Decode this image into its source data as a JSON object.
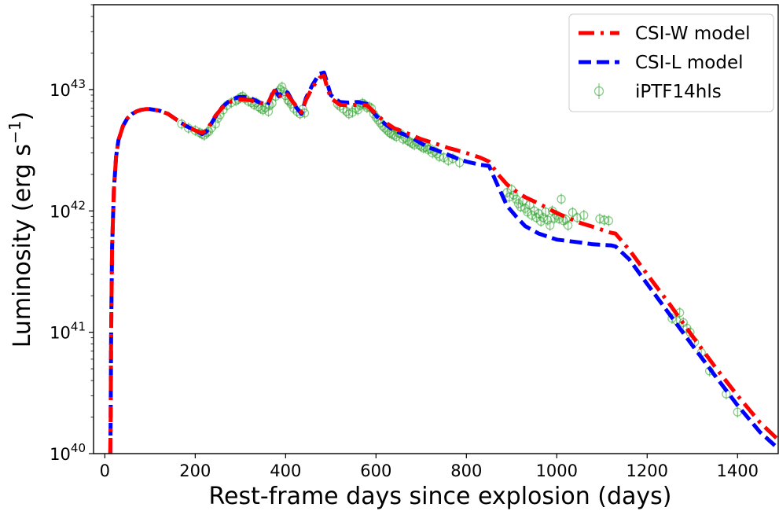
{
  "chart_data": {
    "type": "line",
    "title": "",
    "xlabel": "Rest-frame days since explosion (days)",
    "ylabel": {
      "prefix": "Luminosity (erg s",
      "exponent": "−1",
      "suffix": ")"
    },
    "xlim": [
      -25,
      1490
    ],
    "ylim": [
      1e+40,
      5e+43
    ],
    "yscale": "log",
    "grid": false,
    "legend_position": "top-right",
    "x_ticks": [
      "0",
      "200",
      "400",
      "600",
      "800",
      "1000",
      "1200",
      "1400"
    ],
    "y_ticks": [
      {
        "base": "10",
        "exp": "40"
      },
      {
        "base": "10",
        "exp": "41"
      },
      {
        "base": "10",
        "exp": "42"
      },
      {
        "base": "10",
        "exp": "43"
      }
    ],
    "series": [
      {
        "name": "CSI-W model",
        "type": "line",
        "color": "#ff0000",
        "dash": "dashdot",
        "x": [
          12,
          13,
          14,
          16,
          20,
          25,
          30,
          40,
          50,
          60,
          70,
          80,
          90,
          100,
          120,
          140,
          160,
          180,
          200,
          215,
          225,
          235,
          245,
          260,
          280,
          300,
          320,
          340,
          360,
          375,
          385,
          395,
          405,
          415,
          425,
          435,
          445,
          460,
          475,
          485,
          490,
          500,
          520,
          540,
          560,
          580,
          600,
          620,
          640,
          660,
          680,
          700,
          720,
          740,
          760,
          780,
          800,
          830,
          850,
          870,
          890,
          910,
          930,
          960,
          1000,
          1050,
          1080,
          1120,
          1130,
          1160,
          1200,
          1250,
          1300,
          1350,
          1400,
          1450,
          1490
        ],
        "y": [
          1e+40,
          2e+40,
          1e+41,
          5e+41,
          1.5e+42,
          2.8e+42,
          3.8e+42,
          5e+42,
          5.8e+42,
          6.3e+42,
          6.6e+42,
          6.8e+42,
          6.9e+42,
          6.9e+42,
          6.7e+42,
          6.3e+42,
          5.6e+42,
          5e+42,
          4.6e+42,
          4.4e+42,
          4.6e+42,
          5.3e+42,
          6.1e+42,
          7.1e+42,
          8e+42,
          8.3e+42,
          8.2e+42,
          7.8e+42,
          7.6e+42,
          9.8e+42,
          8.6e+42,
          9.5e+42,
          9e+42,
          8e+42,
          7.2e+42,
          6.5e+42,
          8.2e+42,
          1.05e+43,
          1.25e+43,
          1.3e+43,
          1.1e+43,
          8.5e+42,
          7.5e+42,
          7.4e+42,
          7.5e+42,
          7.4e+42,
          6.3e+42,
          5.4e+42,
          4.8e+42,
          4.5e+42,
          4.2e+42,
          3.9e+42,
          3.7e+42,
          3.5e+42,
          3.3e+42,
          3.15e+42,
          3e+42,
          2.75e+42,
          2.55e+42,
          2e+42,
          1.65e+42,
          1.45e+42,
          1.3e+42,
          1.15e+42,
          9.6e+41,
          8e+41,
          7.4e+41,
          6.6e+41,
          6.5e+41,
          4.8e+41,
          3e+41,
          1.7e+41,
          9.3e+40,
          5.2e+40,
          3e+40,
          1.8e+40,
          1.3e+40
        ]
      },
      {
        "name": "CSI-L model",
        "type": "line",
        "color": "#0000ff",
        "dash": "dashed",
        "x": [
          12,
          13,
          14,
          16,
          20,
          25,
          30,
          40,
          50,
          60,
          70,
          80,
          90,
          100,
          120,
          140,
          160,
          180,
          200,
          215,
          225,
          235,
          245,
          260,
          280,
          300,
          320,
          340,
          360,
          375,
          385,
          395,
          405,
          415,
          425,
          435,
          445,
          460,
          475,
          485,
          490,
          500,
          520,
          540,
          560,
          580,
          600,
          620,
          640,
          660,
          680,
          700,
          720,
          740,
          760,
          780,
          800,
          830,
          850,
          870,
          890,
          910,
          930,
          960,
          1000,
          1050,
          1080,
          1120,
          1130,
          1160,
          1200,
          1250,
          1300,
          1350,
          1400,
          1450,
          1490
        ],
        "y": [
          1e+40,
          2e+40,
          1e+41,
          5e+41,
          1.5e+42,
          2.8e+42,
          3.8e+42,
          5e+42,
          5.8e+42,
          6.3e+42,
          6.6e+42,
          6.8e+42,
          6.9e+42,
          6.9e+42,
          6.7e+42,
          6.3e+42,
          5.6e+42,
          5e+42,
          4.6e+42,
          4.3e+42,
          4.5e+42,
          5.2e+42,
          6e+42,
          7.2e+42,
          8.3e+42,
          8.7e+42,
          8.6e+42,
          7.9e+42,
          7.4e+42,
          1.02e+43,
          8.8e+42,
          9.8e+42,
          9.4e+42,
          8e+42,
          7e+42,
          6.3e+42,
          8.5e+42,
          1.1e+43,
          1.35e+43,
          1.38e+43,
          1.2e+43,
          9e+42,
          7.9e+42,
          7.8e+42,
          7.9e+42,
          7.6e+42,
          6.1e+42,
          5.2e+42,
          4.6e+42,
          4.3e+42,
          4e+42,
          3.6e+42,
          3.3e+42,
          3.1e+42,
          2.9e+42,
          2.7e+42,
          2.55e+42,
          2.4e+42,
          2.35e+42,
          1.6e+42,
          1.1e+42,
          9e+41,
          7.5e+41,
          6.5e+41,
          5.8e+41,
          5.5e+41,
          5.3e+41,
          5.2e+41,
          5.1e+41,
          4e+41,
          2.5e+41,
          1.4e+41,
          7.8e+40,
          4.4e+40,
          2.5e+40,
          1.5e+40,
          1.1e+40
        ]
      },
      {
        "name": "iPTF14hls",
        "type": "scatter",
        "color": "#2ca02c",
        "marker": "open-circle-errorbar",
        "x": [
          170,
          185,
          200,
          210,
          215,
          220,
          225,
          230,
          235,
          245,
          250,
          255,
          262,
          270,
          280,
          290,
          295,
          300,
          305,
          310,
          318,
          325,
          330,
          335,
          340,
          345,
          350,
          355,
          362,
          365,
          370,
          378,
          383,
          388,
          392,
          396,
          400,
          405,
          408,
          412,
          418,
          425,
          432,
          438,
          442,
          515,
          520,
          528,
          535,
          540,
          548,
          555,
          560,
          565,
          570,
          575,
          580,
          585,
          590,
          595,
          600,
          605,
          610,
          615,
          620,
          625,
          630,
          635,
          640,
          645,
          650,
          655,
          660,
          665,
          670,
          675,
          680,
          685,
          690,
          695,
          700,
          705,
          710,
          715,
          720,
          725,
          730,
          735,
          740,
          750,
          760,
          770,
          785,
          890,
          895,
          900,
          905,
          910,
          915,
          920,
          925,
          930,
          935,
          940,
          945,
          950,
          955,
          960,
          965,
          970,
          975,
          980,
          985,
          990,
          995,
          1000,
          1005,
          1010,
          1015,
          1020,
          1025,
          1035,
          1045,
          1060,
          1095,
          1105,
          1115,
          1255,
          1265,
          1272,
          1280,
          1288,
          1295,
          1305,
          1320,
          1338,
          1375,
          1400
        ],
        "y": [
          5.2e+42,
          4.8e+42,
          4.6e+42,
          4.4e+42,
          4.3e+42,
          4.2e+42,
          4.4e+42,
          4.5e+42,
          4.8e+42,
          5.2e+42,
          5.8e+42,
          6.2e+42,
          6.8e+42,
          7.4e+42,
          7.8e+42,
          8.1e+42,
          8.3e+42,
          8.6e+42,
          8.8e+42,
          8.4e+42,
          8e+42,
          7.8e+42,
          7.5e+42,
          7.8e+42,
          7.2e+42,
          7e+42,
          6.8e+42,
          7.1e+42,
          6.6e+42,
          7.4e+42,
          7.7e+42,
          8.8e+42,
          9.5e+42,
          1e+43,
          1.05e+43,
          9.6e+42,
          8.9e+42,
          8.2e+42,
          8e+42,
          7.6e+42,
          7e+42,
          6.6e+42,
          6.3e+42,
          6.9e+42,
          6.4e+42,
          7.6e+42,
          7.3e+42,
          6.9e+42,
          6.6e+42,
          6.3e+42,
          6.5e+42,
          7e+42,
          6.8e+42,
          7.4e+42,
          7.7e+42,
          7.5e+42,
          7.1e+42,
          7.2e+42,
          7e+42,
          6.3e+42,
          5.9e+42,
          5.6e+42,
          5.3e+42,
          5e+42,
          4.8e+42,
          4.6e+42,
          4.4e+42,
          4.3e+42,
          4.2e+42,
          4.1e+42,
          4.4e+42,
          4.3e+42,
          3.9e+42,
          4e+42,
          3.8e+42,
          3.7e+42,
          3.6e+42,
          3.5e+42,
          3.7e+42,
          3.5e+42,
          3.4e+42,
          3.3e+42,
          3.35e+42,
          3.2e+42,
          3.25e+42,
          3e+42,
          3.1e+42,
          2.95e+42,
          2.8e+42,
          2.75e+42,
          2.6e+42,
          2.7e+42,
          2.5e+42,
          1.42e+42,
          1.3e+42,
          1.5e+42,
          1.35e+42,
          1.25e+42,
          1.15e+42,
          1.08e+42,
          1.2e+42,
          1.05e+42,
          9.8e+41,
          1.12e+42,
          9.2e+41,
          1e+42,
          8.8e+41,
          9.5e+41,
          8.2e+41,
          8.8e+41,
          9.8e+41,
          8.4e+41,
          7.6e+41,
          1e+42,
          8.7e+41,
          9.2e+41,
          8.6e+41,
          1.25e+42,
          8.3e+41,
          8.5e+41,
          7.6e+41,
          9.7e+41,
          8.8e+41,
          9.2e+41,
          8.6e+41,
          8.4e+41,
          8.3e+41,
          1.3e+41,
          1.25e+41,
          1.45e+41,
          1.2e+41,
          1.08e+41,
          1e+41,
          8.3e+40,
          6.8e+40,
          4.8e+40,
          3.1e+40,
          2.2e+40
        ]
      }
    ]
  }
}
